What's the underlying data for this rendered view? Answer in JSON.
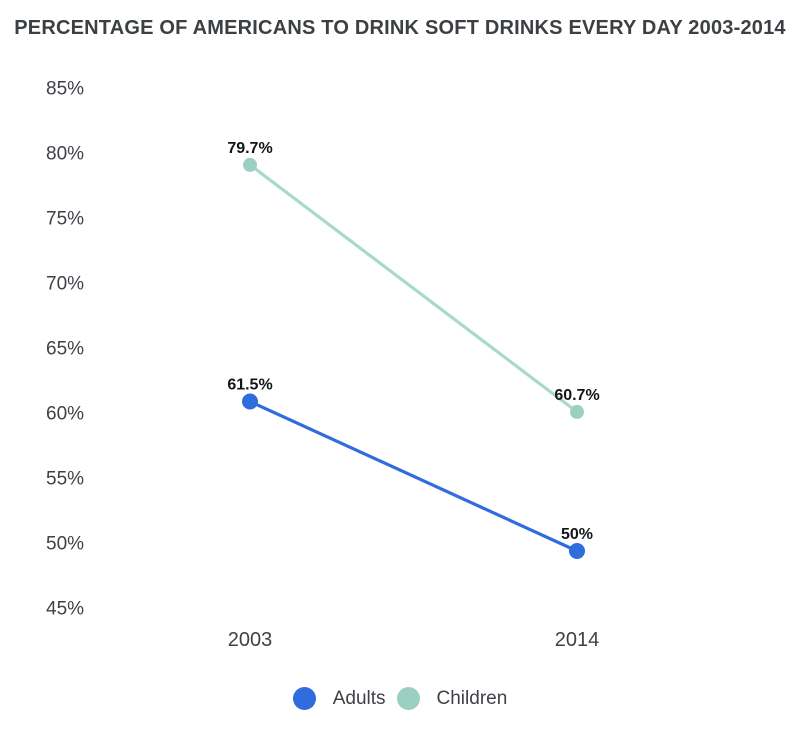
{
  "chart_data": {
    "type": "line",
    "title": "PERCENTAGE OF AMERICANS TO DRINK SOFT DRINKS EVERY DAY 2003-2014",
    "categories": [
      "2003",
      "2014"
    ],
    "series": [
      {
        "name": "Adults",
        "values": [
          61.5,
          50
        ],
        "point_labels": [
          "61.5%",
          "50%"
        ],
        "line_color": "#2f6cdd",
        "dot_color": "#2f6cdd"
      },
      {
        "name": "Children",
        "values": [
          79.7,
          60.7
        ],
        "point_labels": [
          "79.7%",
          "60.7%"
        ],
        "line_color": "#a9d9cc",
        "dot_color": "#9bcfc2"
      }
    ],
    "xlabel": "",
    "ylabel": "",
    "ylim": [
      45,
      85
    ],
    "ytick_step": 5,
    "ytick_labels": [
      "85%",
      "80%",
      "75%",
      "70%",
      "65%",
      "60%",
      "55%",
      "50%",
      "45%"
    ],
    "ytick_values": [
      85,
      80,
      75,
      70,
      65,
      60,
      55,
      50,
      45
    ],
    "grid": false,
    "legend_position": "bottom",
    "colors": {
      "title_text": "#3c4043",
      "axis_text": "#3e4247",
      "data_label_text": "#131517",
      "adults_blue": "#2f6cdd",
      "children_teal_line": "#a9d9cc",
      "children_teal_dot": "#9bcfc2",
      "background": "#ffffff"
    }
  }
}
